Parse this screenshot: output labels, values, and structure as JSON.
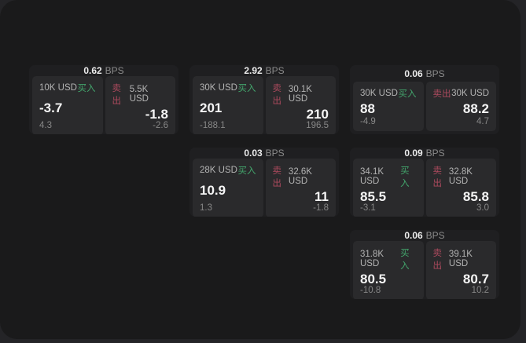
{
  "labels": {
    "bps_unit": "BPS",
    "buy": "买入",
    "sell": "卖出"
  },
  "colors": {
    "window_bg": "#1a1a1b",
    "card_bg": "#1f1f21",
    "panel_bg": "#2a2a2c",
    "buy_green": "#43a56c",
    "sell_red": "#ad4a5e",
    "price_white": "#f5f5f5",
    "label_gray": "#b3b3b3",
    "delta_gray": "#878787"
  },
  "cards": [
    {
      "col": 1,
      "row": 1,
      "bps": "0.62",
      "buy": {
        "notional": "10K USD",
        "price": "-3.7",
        "delta": "4.3"
      },
      "sell": {
        "notional": "5.5K USD",
        "price": "-1.8",
        "delta": "-2.6"
      }
    },
    {
      "col": 2,
      "row": 1,
      "bps": "2.92",
      "buy": {
        "notional": "30K USD",
        "price": "201",
        "delta": "-188.1"
      },
      "sell": {
        "notional": "30.1K USD",
        "price": "210",
        "delta": "196.5"
      }
    },
    {
      "col": 3,
      "row": 1,
      "bps": "0.06",
      "buy": {
        "notional": "30K USD",
        "price": "88",
        "delta": "-4.9"
      },
      "sell": {
        "notional": "30K USD",
        "price": "88.2",
        "delta": "4.7"
      }
    },
    {
      "col": 2,
      "row": 2,
      "bps": "0.03",
      "buy": {
        "notional": "28K USD",
        "price": "10.9",
        "delta": "1.3"
      },
      "sell": {
        "notional": "32.6K USD",
        "price": "11",
        "delta": "-1.8"
      }
    },
    {
      "col": 3,
      "row": 2,
      "bps": "0.09",
      "buy": {
        "notional": "34.1K USD",
        "price": "85.5",
        "delta": "-3.1"
      },
      "sell": {
        "notional": "32.8K USD",
        "price": "85.8",
        "delta": "3.0"
      }
    },
    {
      "col": 3,
      "row": 3,
      "bps": "0.06",
      "buy": {
        "notional": "31.8K USD",
        "price": "80.5",
        "delta": "-10.8"
      },
      "sell": {
        "notional": "39.1K USD",
        "price": "80.7",
        "delta": "10.2"
      }
    }
  ]
}
